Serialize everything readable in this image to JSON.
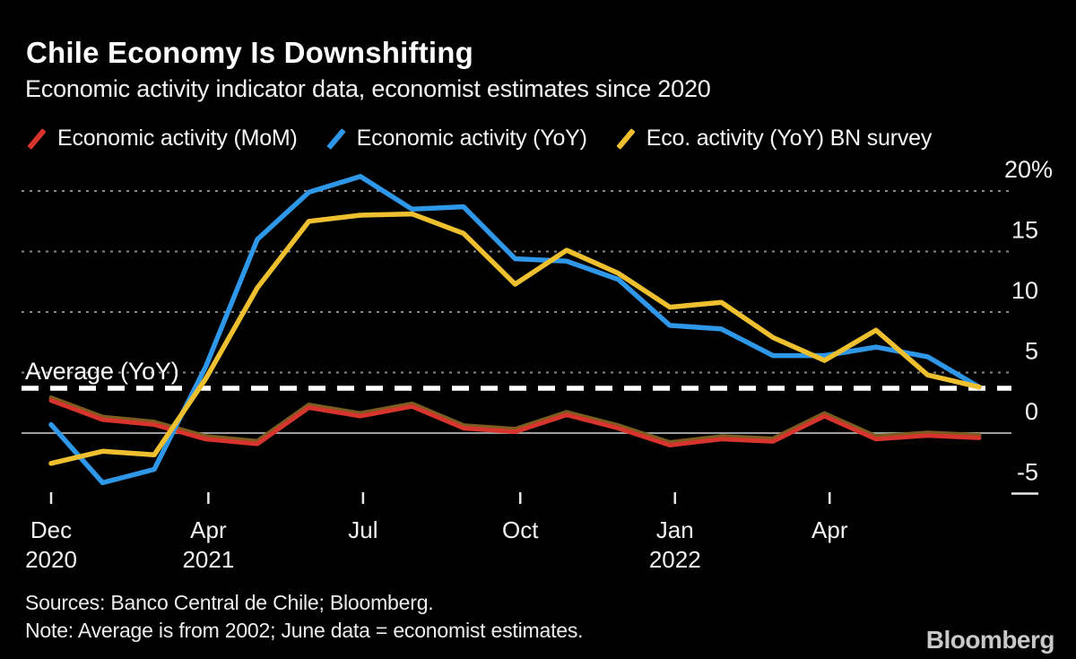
{
  "header": {
    "title": "Chile Economy Is Downshifting",
    "subtitle": "Economic activity indicator data, economist estimates since 2020"
  },
  "annotation": {
    "average_label": "Average (YoY)"
  },
  "footer": {
    "sources": "Sources: Banco Central de Chile; Bloomberg.",
    "note": "Note: Average is from 2002; June data = economist estimates.",
    "logo": "Bloomberg"
  },
  "style": {
    "background": "#000000",
    "grid_color": "#8a8a8a",
    "zero_line_color": "#9e9e9e",
    "neg5_stub_color": "#e8e8e8",
    "average_line_color": "#ffffff",
    "tick_color": "#e8e8e8",
    "axis_text_color": "#f2f2f2",
    "mom_shadow_color": "#7d5c20"
  },
  "chart_data": {
    "type": "line",
    "title": "Chile Economy Is Downshifting",
    "x": [
      "Dec 2020",
      "Jan 2021",
      "Feb 2021",
      "Mar 2021",
      "Apr 2021",
      "May 2021",
      "Jun 2021",
      "Jul 2021",
      "Aug 2021",
      "Sep 2021",
      "Oct 2021",
      "Nov 2021",
      "Dec 2021",
      "Jan 2022",
      "Feb 2022",
      "Mar 2022",
      "Apr 2022",
      "May 2022",
      "Jun 2022"
    ],
    "series": [
      {
        "name": "Economic activity (MoM)",
        "color": "#d6342d",
        "values": [
          2.7,
          1.1,
          0.7,
          -0.5,
          -0.9,
          2.1,
          1.4,
          2.2,
          0.4,
          0.1,
          1.5,
          0.4,
          -1.0,
          -0.5,
          -0.7,
          1.4,
          -0.5,
          -0.2,
          -0.4
        ]
      },
      {
        "name": "Economic activity (YoY)",
        "color": "#2f97e8",
        "values": [
          0.7,
          -4.1,
          -3.0,
          5.5,
          16.0,
          19.9,
          21.2,
          18.5,
          18.7,
          14.4,
          14.2,
          12.7,
          8.9,
          8.6,
          6.4,
          6.4,
          7.1,
          6.3,
          3.8
        ]
      },
      {
        "name": "Eco. activity (YoY) BN survey",
        "color": "#eec02f",
        "values": [
          -2.5,
          -1.5,
          -1.8,
          4.5,
          12.0,
          17.5,
          18.0,
          18.1,
          16.5,
          12.3,
          15.1,
          13.2,
          10.4,
          10.8,
          7.9,
          6.0,
          8.5,
          4.8,
          3.8
        ]
      }
    ],
    "average_yoy": 3.7,
    "unit": "%",
    "ylim": [
      -6.5,
      22
    ],
    "yticks": [
      {
        "label": "20%",
        "value": 20
      },
      {
        "label": "15",
        "value": 15
      },
      {
        "label": "10",
        "value": 10
      },
      {
        "label": "5",
        "value": 5
      },
      {
        "label": "0",
        "value": 0
      },
      {
        "label": "-5",
        "value": -5
      }
    ],
    "xticks": [
      {
        "month": "Dec",
        "year": "2020",
        "pos": 0
      },
      {
        "month": "Apr",
        "year": "2021",
        "pos": 3.05
      },
      {
        "month": "Jul",
        "year": "",
        "pos": 6.05
      },
      {
        "month": "Oct",
        "year": "",
        "pos": 9.1
      },
      {
        "month": "Jan",
        "year": "2022",
        "pos": 12.1
      },
      {
        "month": "Apr",
        "year": "",
        "pos": 15.1
      }
    ],
    "grid": "dotted-horizontal",
    "legend_position": "top"
  }
}
